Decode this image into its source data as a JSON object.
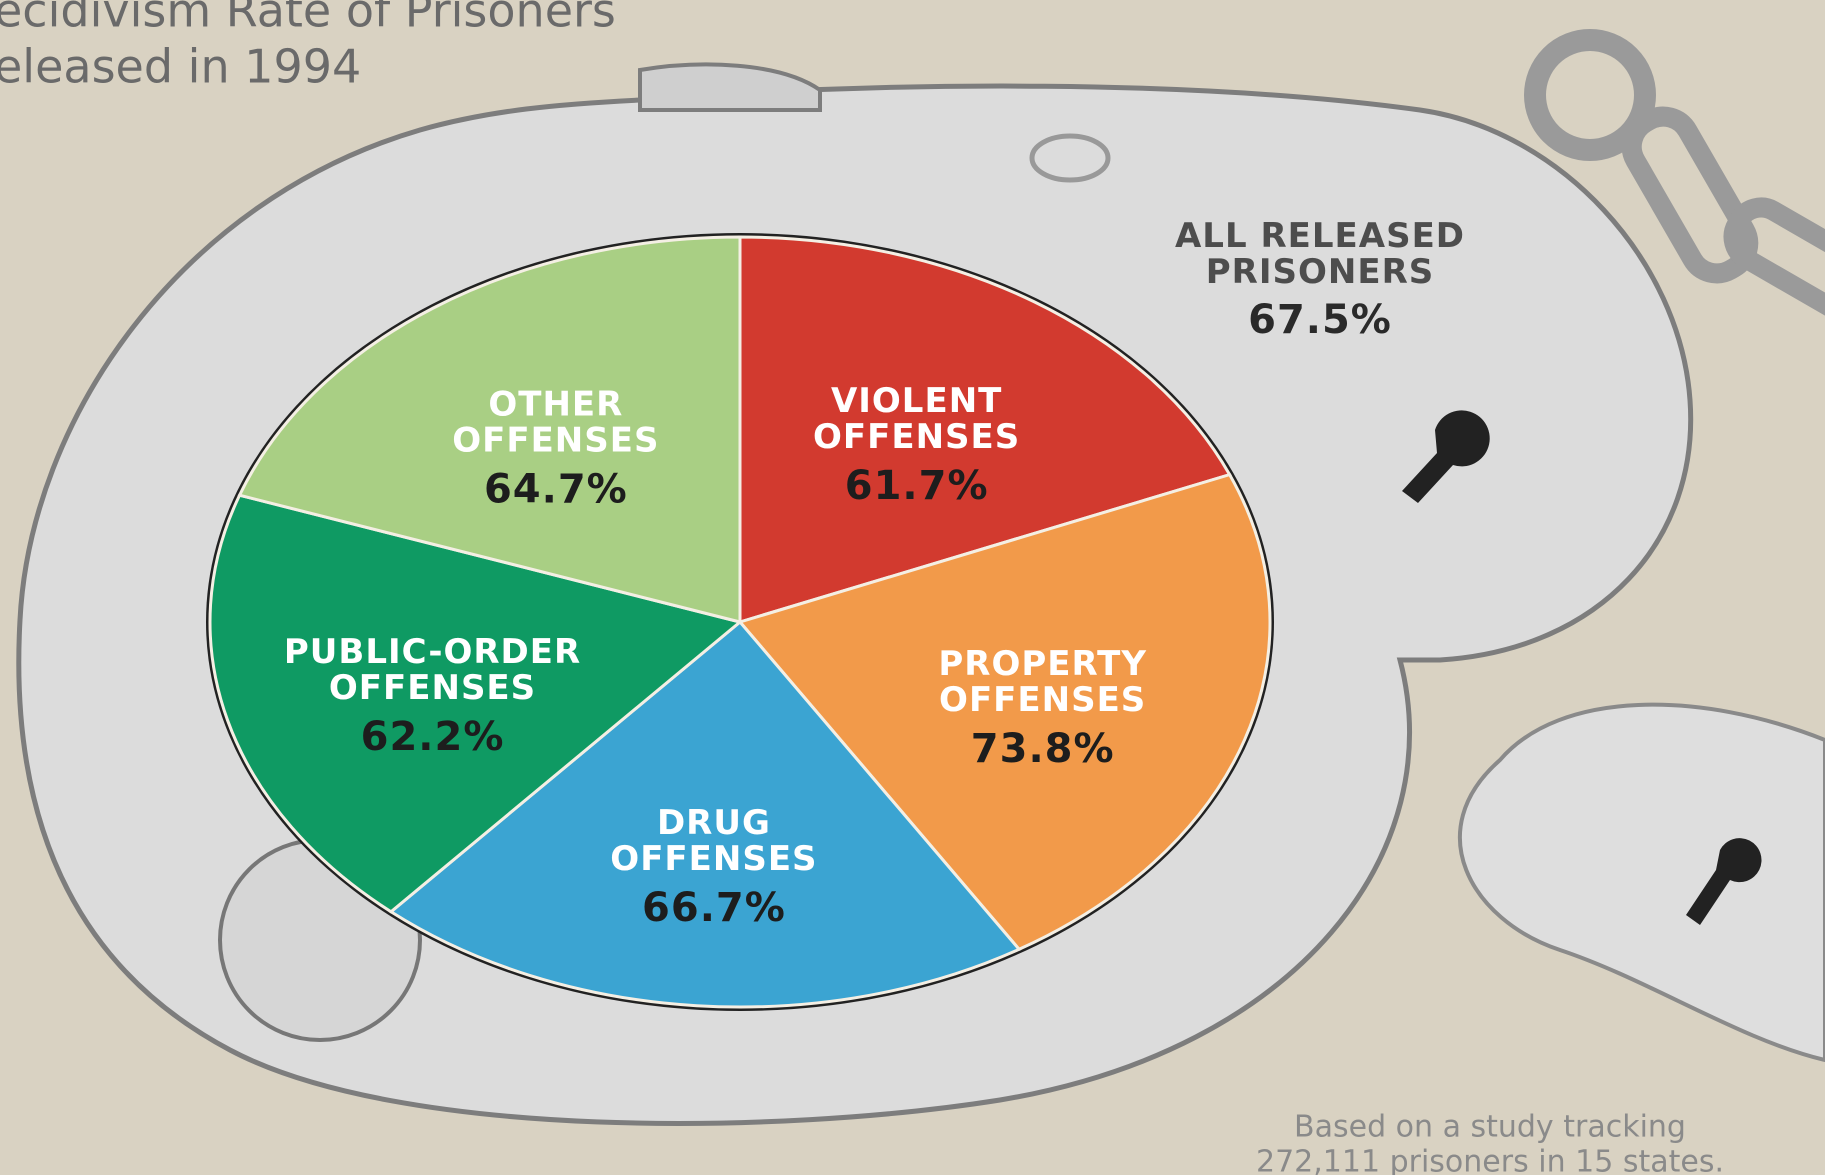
{
  "chart_data": {
    "type": "pie",
    "title_lines": [
      "ecidivism Rate of Prisoners",
      "eleased in 1994"
    ],
    "categories": [
      "VIOLENT OFFENSES",
      "PROPERTY OFFENSES",
      "DRUG OFFENSES",
      "PUBLIC-ORDER OFFENSES",
      "OTHER OFFENSES"
    ],
    "values": [
      61.7,
      73.8,
      66.7,
      62.2,
      64.7
    ],
    "value_labels": [
      "61.7%",
      "73.8%",
      "66.7%",
      "62.2%",
      "64.7%"
    ],
    "colors": [
      "#d23a2f",
      "#f29a4a",
      "#3ba4d2",
      "#0f9a63",
      "#a9cf84"
    ],
    "annotation": {
      "text": "ALL RELEASED PRISONERS",
      "value": 67.5,
      "value_label": "67.5%"
    },
    "footnote_lines": [
      "Based on a study tracking",
      "272,111 prisoners in 15 states."
    ]
  }
}
